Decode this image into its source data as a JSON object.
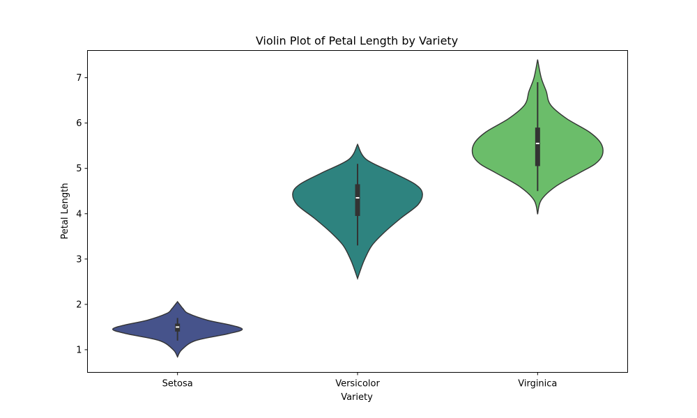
{
  "chart_data": {
    "type": "violin",
    "title": "Violin Plot of Petal Length by Variety",
    "xlabel": "Variety",
    "ylabel": "Petal Length",
    "ylim": [
      0.5,
      7.6
    ],
    "yticks": [
      1,
      2,
      3,
      4,
      5,
      6,
      7
    ],
    "grid": false,
    "categories": [
      "Setosa",
      "Versicolor",
      "Virginica"
    ],
    "series": [
      {
        "category": "Setosa",
        "color": "#46538b",
        "q1": 1.4,
        "median": 1.5,
        "q3": 1.575,
        "whisker_low": 1.2,
        "whisker_high": 1.7,
        "kde_y": [
          0.84,
          1.0,
          1.2,
          1.35,
          1.45,
          1.55,
          1.65,
          1.8,
          1.9,
          2.0,
          2.06
        ],
        "kde_w": [
          0.0,
          0.06,
          0.25,
          0.7,
          0.9,
          0.72,
          0.42,
          0.15,
          0.08,
          0.03,
          0.0
        ]
      },
      {
        "category": "Versicolor",
        "color": "#2e837f",
        "q1": 3.95,
        "median": 4.35,
        "q3": 4.65,
        "whisker_low": 3.3,
        "whisker_high": 5.1,
        "kde_y": [
          2.57,
          2.8,
          3.0,
          3.3,
          3.6,
          3.9,
          4.2,
          4.45,
          4.65,
          4.9,
          5.2,
          5.53
        ],
        "kde_w": [
          0.0,
          0.05,
          0.1,
          0.2,
          0.38,
          0.6,
          0.84,
          0.9,
          0.8,
          0.5,
          0.12,
          0.0
        ]
      },
      {
        "category": "Virginica",
        "color": "#6bbd6a",
        "q1": 5.05,
        "median": 5.55,
        "q3": 5.9,
        "whisker_low": 4.5,
        "whisker_high": 6.9,
        "kde_y": [
          3.99,
          4.3,
          4.6,
          4.9,
          5.1,
          5.3,
          5.55,
          5.8,
          6.1,
          6.4,
          6.7,
          7.0,
          7.4
        ],
        "kde_w": [
          0.0,
          0.05,
          0.25,
          0.58,
          0.8,
          0.9,
          0.88,
          0.72,
          0.4,
          0.18,
          0.12,
          0.05,
          0.0
        ]
      }
    ]
  }
}
